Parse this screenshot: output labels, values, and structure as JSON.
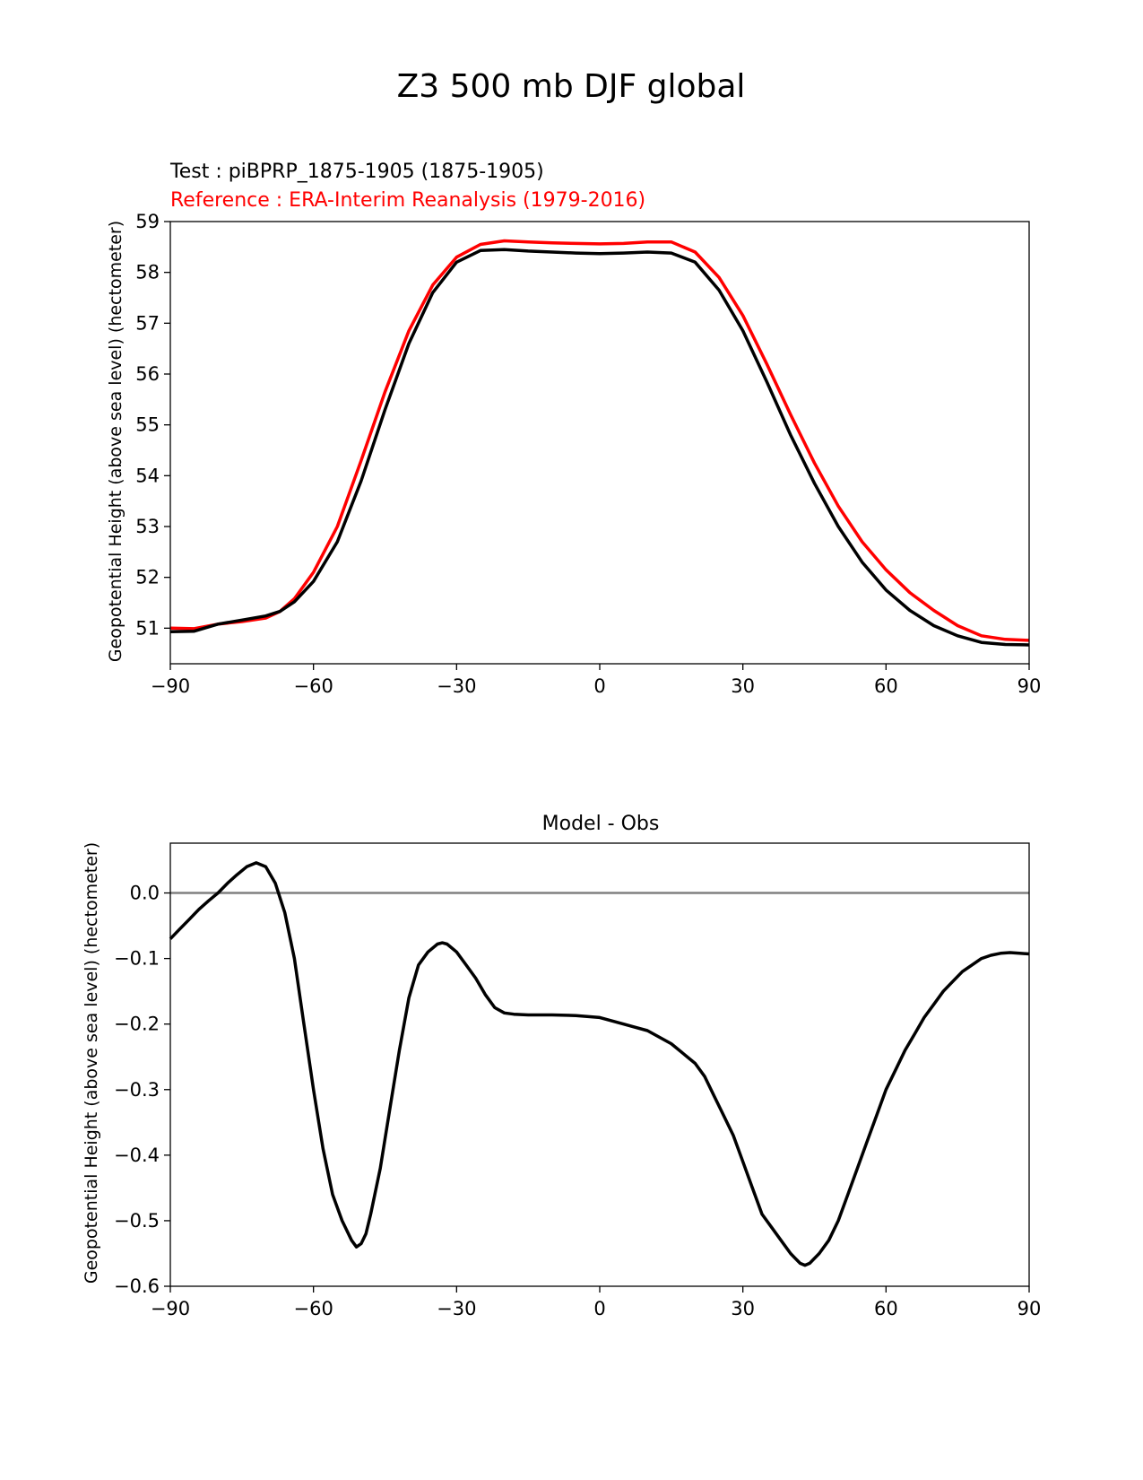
{
  "figure": {
    "suptitle": "Z3 500 mb DJF global"
  },
  "chart_data": [
    {
      "type": "line",
      "title_test": "Test : piBPRP_1875-1905 (1875-1905)",
      "title_reference": "Reference : ERA-Interim Reanalysis (1979-2016)",
      "xlabel": "",
      "ylabel": "Geopotential Height (above sea level) (hectometer)",
      "xlim": [
        -90,
        90
      ],
      "ylim": [
        50.3,
        59.0
      ],
      "xticks": [
        "−90",
        "−60",
        "−30",
        "0",
        "30",
        "60",
        "90"
      ],
      "xtick_values": [
        -90,
        -60,
        -30,
        0,
        30,
        60,
        90
      ],
      "yticks": [
        "51",
        "52",
        "53",
        "54",
        "55",
        "56",
        "57",
        "58",
        "59"
      ],
      "ytick_values": [
        51,
        52,
        53,
        54,
        55,
        56,
        57,
        58,
        59
      ],
      "grid": false,
      "series": [
        {
          "color": "#ff0000",
          "x": [
            -90,
            -85,
            -80,
            -75,
            -70,
            -67,
            -64,
            -60,
            -55,
            -50,
            -45,
            -40,
            -35,
            -30,
            -25,
            -20,
            -15,
            -10,
            -5,
            0,
            5,
            10,
            15,
            20,
            25,
            30,
            35,
            40,
            45,
            50,
            55,
            60,
            65,
            70,
            75,
            80,
            85,
            90
          ],
          "y": [
            51.0,
            50.99,
            51.08,
            51.13,
            51.2,
            51.33,
            51.58,
            52.1,
            53.0,
            54.3,
            55.65,
            56.85,
            57.75,
            58.3,
            58.55,
            58.62,
            58.6,
            58.58,
            58.57,
            58.56,
            58.57,
            58.6,
            58.6,
            58.4,
            57.9,
            57.15,
            56.2,
            55.2,
            54.25,
            53.4,
            52.7,
            52.15,
            51.7,
            51.35,
            51.05,
            50.85,
            50.78,
            50.76
          ]
        },
        {
          "color": "#000000",
          "x": [
            -90,
            -85,
            -80,
            -75,
            -70,
            -67,
            -64,
            -60,
            -55,
            -50,
            -45,
            -40,
            -35,
            -30,
            -25,
            -20,
            -15,
            -10,
            -5,
            0,
            5,
            10,
            15,
            20,
            25,
            30,
            35,
            40,
            45,
            50,
            55,
            60,
            65,
            70,
            75,
            80,
            85,
            90
          ],
          "y": [
            50.93,
            50.94,
            51.08,
            51.16,
            51.24,
            51.33,
            51.52,
            51.92,
            52.7,
            53.9,
            55.3,
            56.6,
            57.6,
            58.2,
            58.43,
            58.45,
            58.42,
            58.4,
            58.38,
            58.37,
            58.38,
            58.4,
            58.38,
            58.2,
            57.65,
            56.85,
            55.85,
            54.8,
            53.85,
            53.0,
            52.3,
            51.75,
            51.35,
            51.05,
            50.85,
            50.72,
            50.68,
            50.67
          ]
        }
      ]
    },
    {
      "type": "line",
      "title": "Model - Obs",
      "xlabel": "",
      "ylabel": "Geopotential Height (above sea level) (hectometer)",
      "xlim": [
        -90,
        90
      ],
      "ylim": [
        -0.6,
        0.076
      ],
      "xticks": [
        "−90",
        "−60",
        "−30",
        "0",
        "30",
        "60",
        "90"
      ],
      "xtick_values": [
        -90,
        -60,
        -30,
        0,
        30,
        60,
        90
      ],
      "yticks": [
        "0.0",
        "−0.1",
        "−0.2",
        "−0.3",
        "−0.4",
        "−0.5",
        "−0.6"
      ],
      "ytick_values": [
        0.0,
        -0.1,
        -0.2,
        -0.3,
        -0.4,
        -0.5,
        -0.6
      ],
      "zero_line": 0.0,
      "grid": false,
      "series": [
        {
          "color": "#000000",
          "x": [
            -90,
            -88,
            -86,
            -84,
            -82,
            -80,
            -78,
            -76,
            -74,
            -72,
            -70,
            -68,
            -66,
            -64,
            -62,
            -60,
            -58,
            -56,
            -54,
            -52,
            -51,
            -50,
            -49,
            -48,
            -46,
            -44,
            -42,
            -40,
            -38,
            -36,
            -34,
            -33,
            -32,
            -30,
            -28,
            -26,
            -24,
            -22,
            -20,
            -18,
            -15,
            -10,
            -5,
            0,
            5,
            10,
            15,
            20,
            22,
            24,
            26,
            28,
            30,
            32,
            34,
            36,
            38,
            40,
            42,
            43,
            44,
            46,
            48,
            50,
            52,
            54,
            56,
            58,
            60,
            62,
            64,
            66,
            68,
            70,
            72,
            74,
            76,
            78,
            80,
            82,
            84,
            86,
            88,
            90
          ],
          "y": [
            -0.07,
            -0.055,
            -0.04,
            -0.025,
            -0.012,
            0.0,
            0.015,
            0.028,
            0.04,
            0.046,
            0.04,
            0.015,
            -0.03,
            -0.1,
            -0.2,
            -0.3,
            -0.39,
            -0.46,
            -0.5,
            -0.53,
            -0.54,
            -0.535,
            -0.52,
            -0.49,
            -0.42,
            -0.33,
            -0.24,
            -0.16,
            -0.11,
            -0.09,
            -0.078,
            -0.076,
            -0.078,
            -0.09,
            -0.11,
            -0.13,
            -0.155,
            -0.175,
            -0.183,
            -0.185,
            -0.186,
            -0.186,
            -0.187,
            -0.19,
            -0.2,
            -0.21,
            -0.23,
            -0.26,
            -0.28,
            -0.31,
            -0.34,
            -0.37,
            -0.41,
            -0.45,
            -0.49,
            -0.51,
            -0.53,
            -0.55,
            -0.565,
            -0.568,
            -0.565,
            -0.55,
            -0.53,
            -0.5,
            -0.46,
            -0.42,
            -0.38,
            -0.34,
            -0.3,
            -0.27,
            -0.24,
            -0.215,
            -0.19,
            -0.17,
            -0.15,
            -0.135,
            -0.12,
            -0.11,
            -0.1,
            -0.095,
            -0.092,
            -0.091,
            -0.092,
            -0.093
          ]
        }
      ]
    }
  ]
}
